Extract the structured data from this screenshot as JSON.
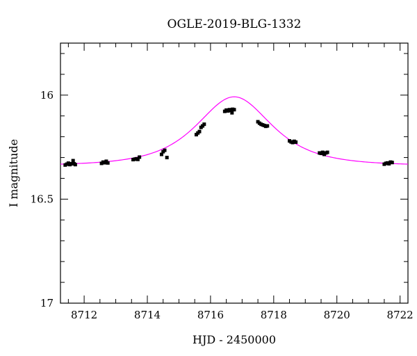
{
  "chart_data": {
    "type": "scatter",
    "title": "OGLE-2019-BLG-1332",
    "xlabel": "HJD - 2450000",
    "ylabel": "I magnitude",
    "xlim": [
      8711.25,
      8722.25
    ],
    "ylim": [
      16.75,
      17.0,
      15.75
    ],
    "y_inverted": true,
    "grid": false,
    "x_ticks": [
      8712,
      8714,
      8716,
      8718,
      8720,
      8722
    ],
    "x_tick_labels": [
      "8712",
      "8714",
      "8716",
      "8718",
      "8720",
      "8722"
    ],
    "y_ticks": [
      16,
      16.5,
      17
    ],
    "y_tick_labels": [
      "16",
      "16.5",
      "17"
    ],
    "series": [
      {
        "type": "scatter",
        "color": "#000000",
        "points": [
          [
            8711.4,
            16.336
          ],
          [
            8711.45,
            16.332
          ],
          [
            8711.5,
            16.327
          ],
          [
            8711.55,
            16.334
          ],
          [
            8711.6,
            16.33
          ],
          [
            8711.65,
            16.315
          ],
          [
            8711.68,
            16.33
          ],
          [
            8711.72,
            16.334
          ],
          [
            8712.55,
            16.328
          ],
          [
            8712.6,
            16.322
          ],
          [
            8712.65,
            16.325
          ],
          [
            8712.7,
            16.318
          ],
          [
            8712.75,
            16.326
          ],
          [
            8713.55,
            16.31
          ],
          [
            8713.6,
            16.308
          ],
          [
            8713.65,
            16.306
          ],
          [
            8713.7,
            16.309
          ],
          [
            8713.75,
            16.298
          ],
          [
            8714.45,
            16.285
          ],
          [
            8714.5,
            16.272
          ],
          [
            8714.55,
            16.265
          ],
          [
            8714.62,
            16.3
          ],
          [
            8715.55,
            16.19
          ],
          [
            8715.6,
            16.182
          ],
          [
            8715.65,
            16.175
          ],
          [
            8715.7,
            16.155
          ],
          [
            8715.75,
            16.148
          ],
          [
            8715.8,
            16.14
          ],
          [
            8716.45,
            16.078
          ],
          [
            8716.5,
            16.072
          ],
          [
            8716.55,
            16.076
          ],
          [
            8716.6,
            16.07
          ],
          [
            8716.65,
            16.074
          ],
          [
            8716.7,
            16.068
          ],
          [
            8716.75,
            16.07
          ],
          [
            8716.68,
            16.085
          ],
          [
            8717.5,
            16.128
          ],
          [
            8717.55,
            16.135
          ],
          [
            8717.6,
            16.14
          ],
          [
            8717.65,
            16.143
          ],
          [
            8717.7,
            16.146
          ],
          [
            8717.75,
            16.15
          ],
          [
            8717.8,
            16.148
          ],
          [
            8718.5,
            16.22
          ],
          [
            8718.55,
            16.225
          ],
          [
            8718.6,
            16.228
          ],
          [
            8718.65,
            16.222
          ],
          [
            8718.7,
            16.226
          ],
          [
            8719.45,
            16.278
          ],
          [
            8719.5,
            16.28
          ],
          [
            8719.55,
            16.275
          ],
          [
            8719.6,
            16.285
          ],
          [
            8719.65,
            16.278
          ],
          [
            8719.7,
            16.275
          ],
          [
            8721.5,
            16.332
          ],
          [
            8721.55,
            16.328
          ],
          [
            8721.6,
            16.326
          ],
          [
            8721.65,
            16.33
          ],
          [
            8721.7,
            16.322
          ],
          [
            8721.75,
            16.324
          ]
        ]
      },
      {
        "type": "line",
        "color": "#ff00ff",
        "model": {
          "baseline_mag": 16.339,
          "t0": 8716.75,
          "tE": 1.45,
          "u0": 0.98
        }
      }
    ]
  }
}
